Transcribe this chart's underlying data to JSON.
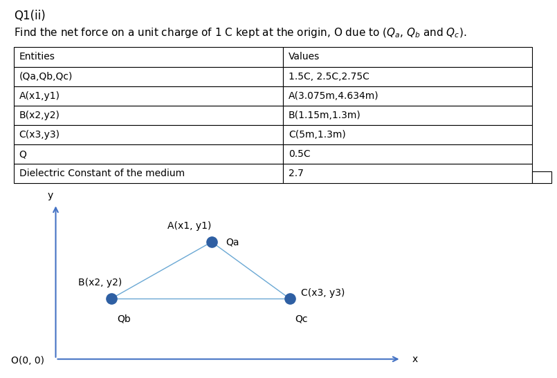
{
  "title": "Q1(ii)",
  "subtitle": "Find the net force on a unit charge of 1 C kept at the origin, O due to ($Q_a$, $Q_b$ and $Q_c$).",
  "table_headers": [
    "Entities",
    "Values"
  ],
  "table_rows": [
    [
      "(Qa,Qb,Qc)",
      "1.5C, 2.5C,2.75C"
    ],
    [
      "A(x1,y1)",
      "A(3.075m,4.634m)"
    ],
    [
      "B(x2,y2)",
      "B(1.15m,1.3m)"
    ],
    [
      "C(x3,y3)",
      "C(5m,1.3m)"
    ],
    [
      "Q",
      "0.5C"
    ],
    [
      "Dielectric Constant of the medium",
      "2.7"
    ]
  ],
  "col_split": 0.52,
  "dot_color": "#2e5fa3",
  "line_color": "#6aa8d4",
  "arrow_color": "#4472c4",
  "background_color": "#ffffff",
  "label_A": "A(x1, y1)",
  "label_Qa": "Qa",
  "label_B": "B(x2, y2)",
  "label_Qb": "Qb",
  "label_C": "C(x3, y3)",
  "label_Qc": "Qc",
  "label_O": "O(0, 0)",
  "label_x": "x",
  "label_y": "y",
  "title_fontsize": 12,
  "subtitle_fontsize": 11,
  "table_fontsize": 10,
  "diagram_fontsize": 10
}
